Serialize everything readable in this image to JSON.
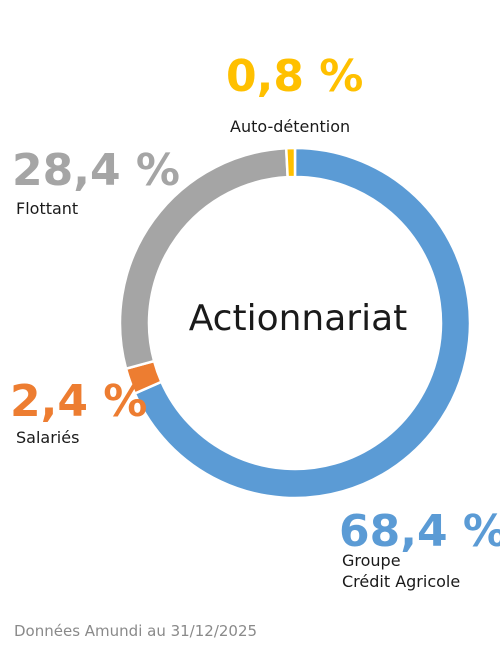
{
  "chart_data": {
    "type": "pie",
    "title": "Actionnariat",
    "categories": [
      "Groupe Crédit Agricole",
      "Salariés",
      "Flottant",
      "Auto-détention"
    ],
    "values": [
      68.4,
      2.4,
      28.4,
      0.8
    ],
    "colors": [
      "#5b9bd5",
      "#ed7d31",
      "#a5a5a5",
      "#ffc000"
    ],
    "segments": [
      {
        "value": 68.4,
        "pct_label": "68,4 %",
        "label_lines": [
          "Groupe",
          "Crédit Agricole"
        ],
        "color": "#5b9bd5"
      },
      {
        "value": 2.4,
        "pct_label": "2,4 %",
        "label_lines": [
          "Salariés"
        ],
        "color": "#ed7d31"
      },
      {
        "value": 28.4,
        "pct_label": "28,4 %",
        "label_lines": [
          "Flottant"
        ],
        "color": "#a5a5a5"
      },
      {
        "value": 0.8,
        "pct_label": "0,8 %",
        "label_lines": [
          "Auto-détention"
        ],
        "color": "#ffc000"
      }
    ]
  },
  "source": "Données Amundi au 31/12/2025"
}
